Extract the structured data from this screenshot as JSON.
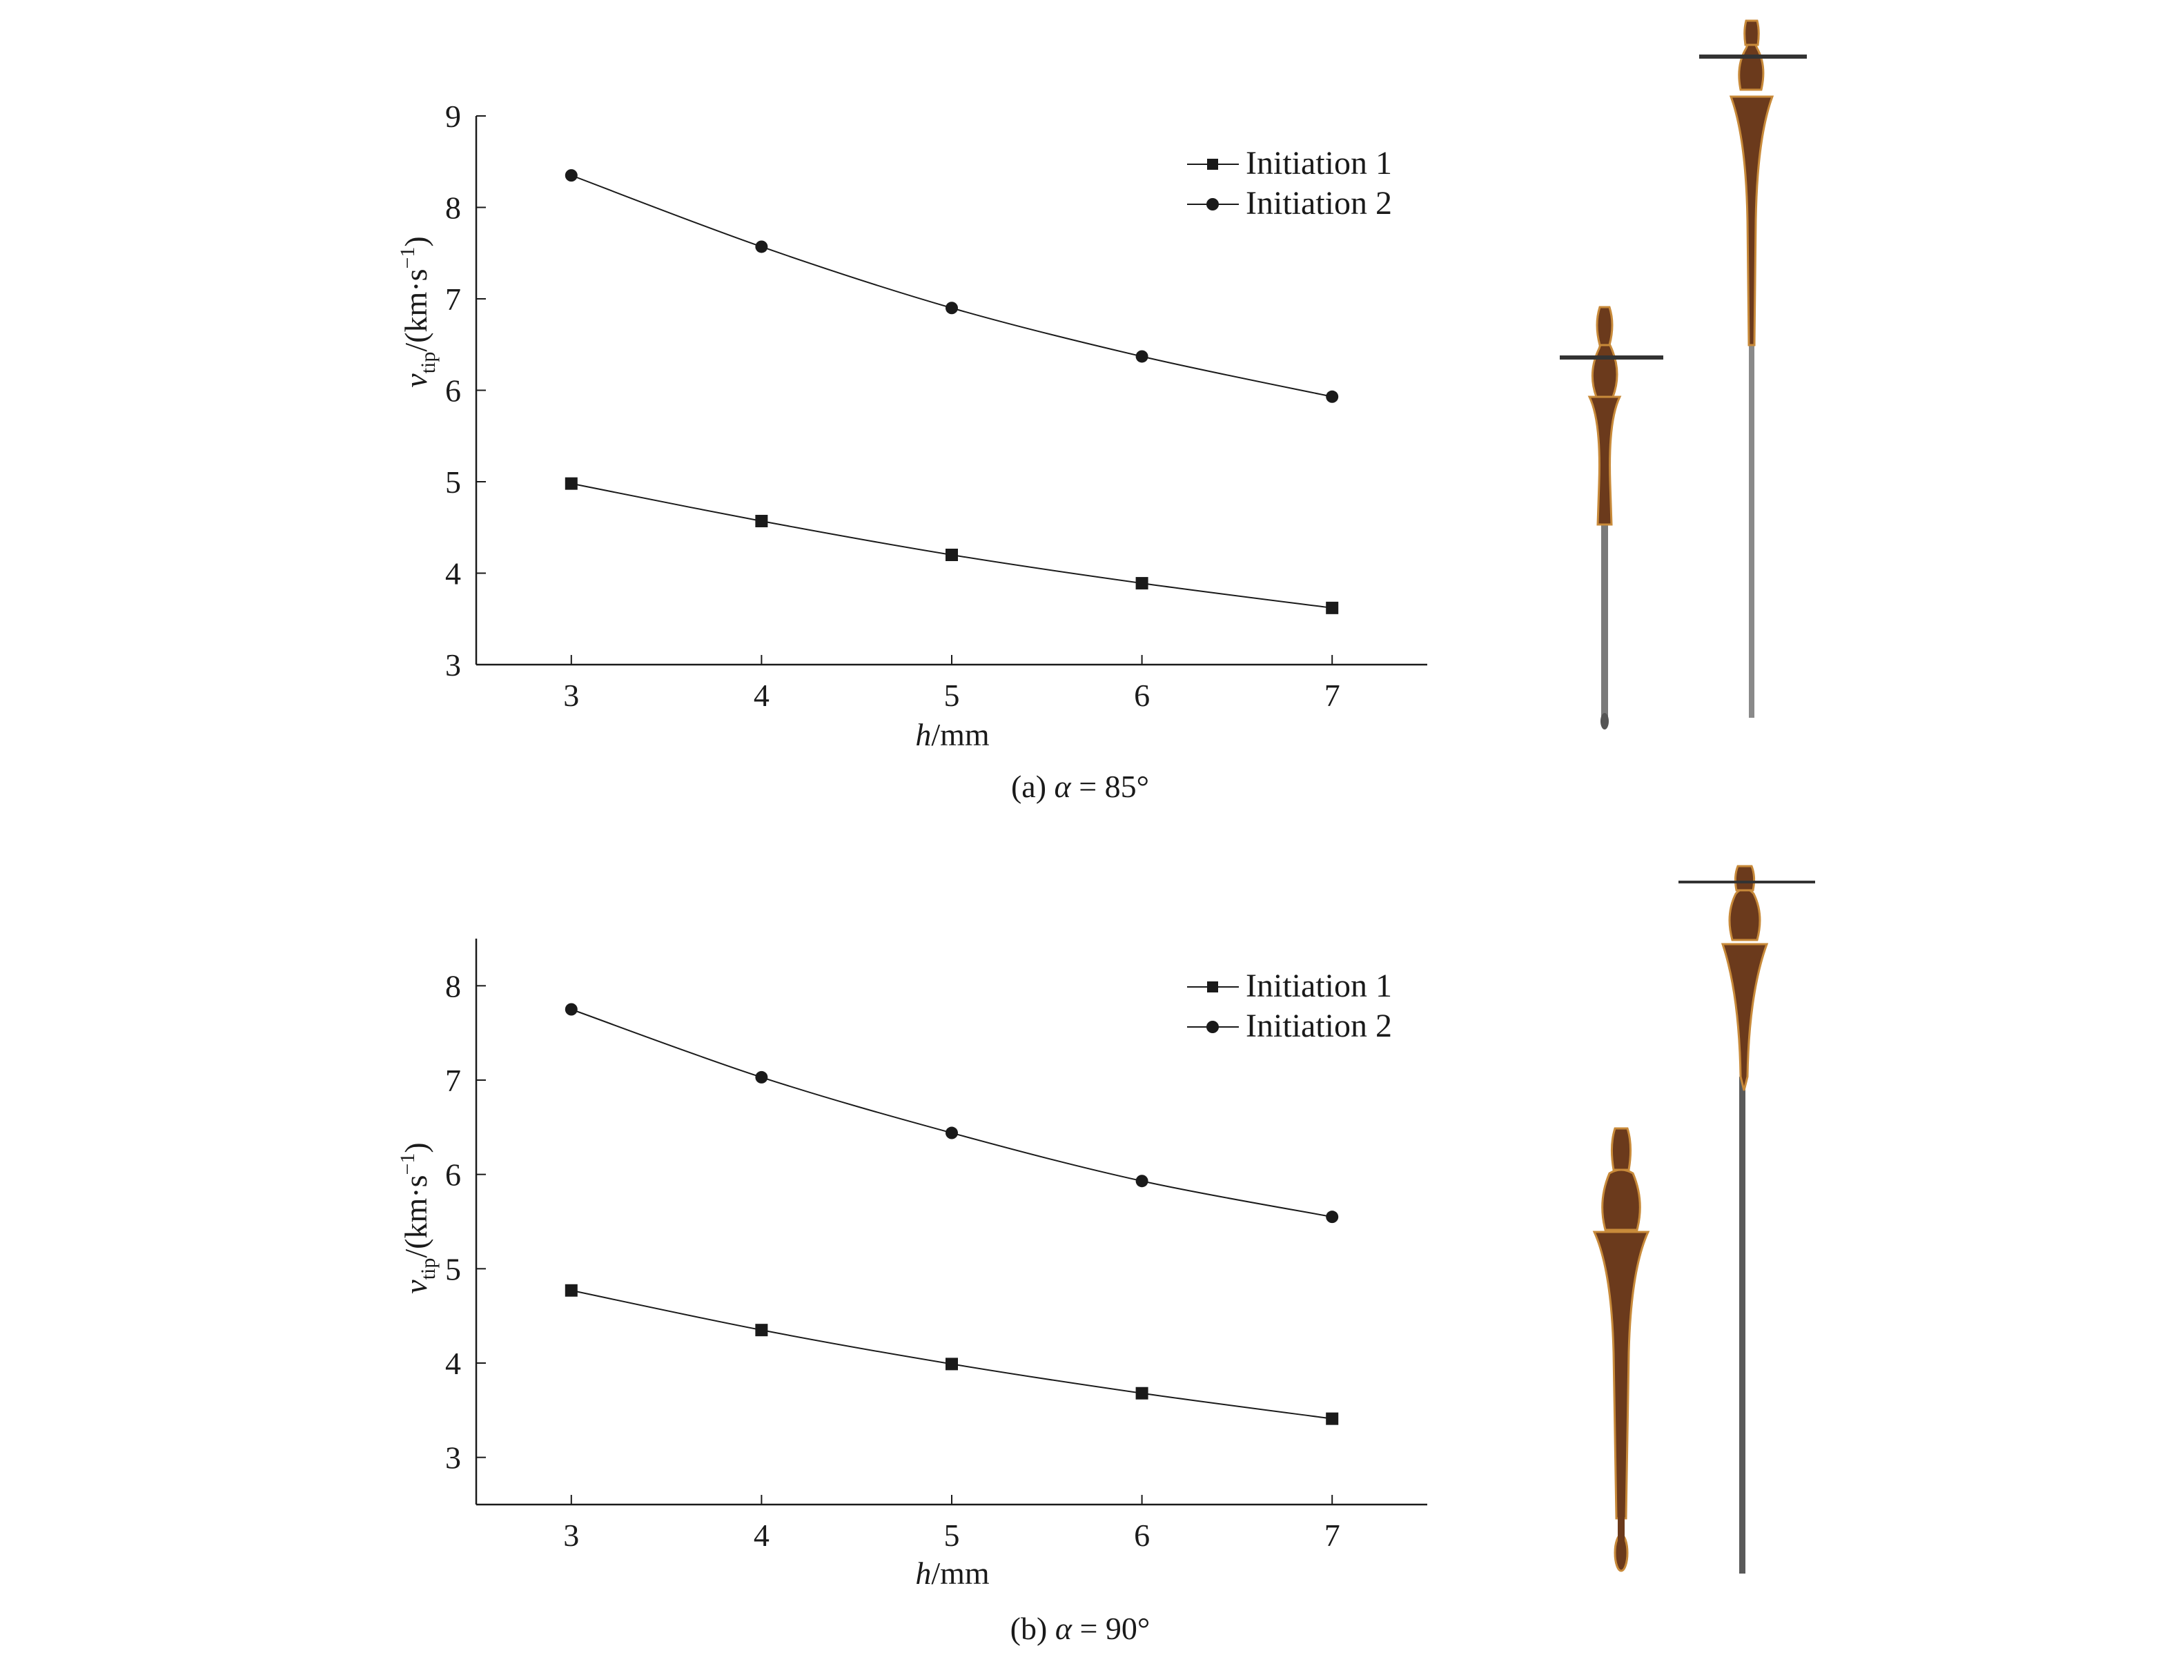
{
  "figure": {
    "panels": [
      {
        "caption": {
          "prefix": "(a) ",
          "symbol": "α",
          "rest": " = 85°"
        },
        "legend": [
          "Initiation 1",
          "Initiation 2"
        ],
        "xlabel": {
          "italic": "h",
          "rest": "/mm"
        },
        "ylabel": {
          "v": "v",
          "sub": "tip",
          "unit": "/(km·s",
          "sup": "−1",
          "close": ")"
        }
      },
      {
        "caption": {
          "prefix": "(b) ",
          "symbol": "α",
          "rest": " = 90°"
        },
        "legend": [
          "Initiation 1",
          "Initiation 2"
        ],
        "xlabel": {
          "italic": "h",
          "rest": "/mm"
        },
        "ylabel": {
          "v": "v",
          "sub": "tip",
          "unit": "/(km·s",
          "sup": "−1",
          "close": ")"
        }
      }
    ],
    "colors": {
      "axis": "#1a1a1a",
      "line": "#1a1a1a",
      "jet_body": "#6b3a1c",
      "jet_edge": "#c88a3a",
      "jet_tail": "#7a7a7a"
    }
  },
  "chart_data": [
    {
      "type": "line",
      "x": [
        3,
        4,
        5,
        6,
        7
      ],
      "xlim": [
        2.5,
        7.5
      ],
      "ylim": [
        3,
        9
      ],
      "xticks": [
        3,
        4,
        5,
        6,
        7
      ],
      "yticks": [
        3,
        4,
        5,
        6,
        7,
        8,
        9
      ],
      "series": [
        {
          "name": "Initiation 1",
          "marker": "square",
          "values": [
            4.98,
            4.57,
            4.2,
            3.89,
            3.62
          ]
        },
        {
          "name": "Initiation 2",
          "marker": "circle",
          "values": [
            8.35,
            7.57,
            6.9,
            6.37,
            5.93
          ]
        }
      ],
      "legend_position": "top-right"
    },
    {
      "type": "line",
      "x": [
        3,
        4,
        5,
        6,
        7
      ],
      "xlim": [
        2.5,
        7.5
      ],
      "ylim": [
        2.5,
        8.5
      ],
      "xticks": [
        3,
        4,
        5,
        6,
        7
      ],
      "yticks": [
        3,
        4,
        5,
        6,
        7,
        8
      ],
      "series": [
        {
          "name": "Initiation 1",
          "marker": "square",
          "values": [
            4.77,
            4.35,
            3.99,
            3.68,
            3.41
          ]
        },
        {
          "name": "Initiation 2",
          "marker": "circle",
          "values": [
            7.75,
            7.03,
            6.44,
            5.93,
            5.55
          ]
        }
      ],
      "legend_position": "top-right"
    }
  ]
}
